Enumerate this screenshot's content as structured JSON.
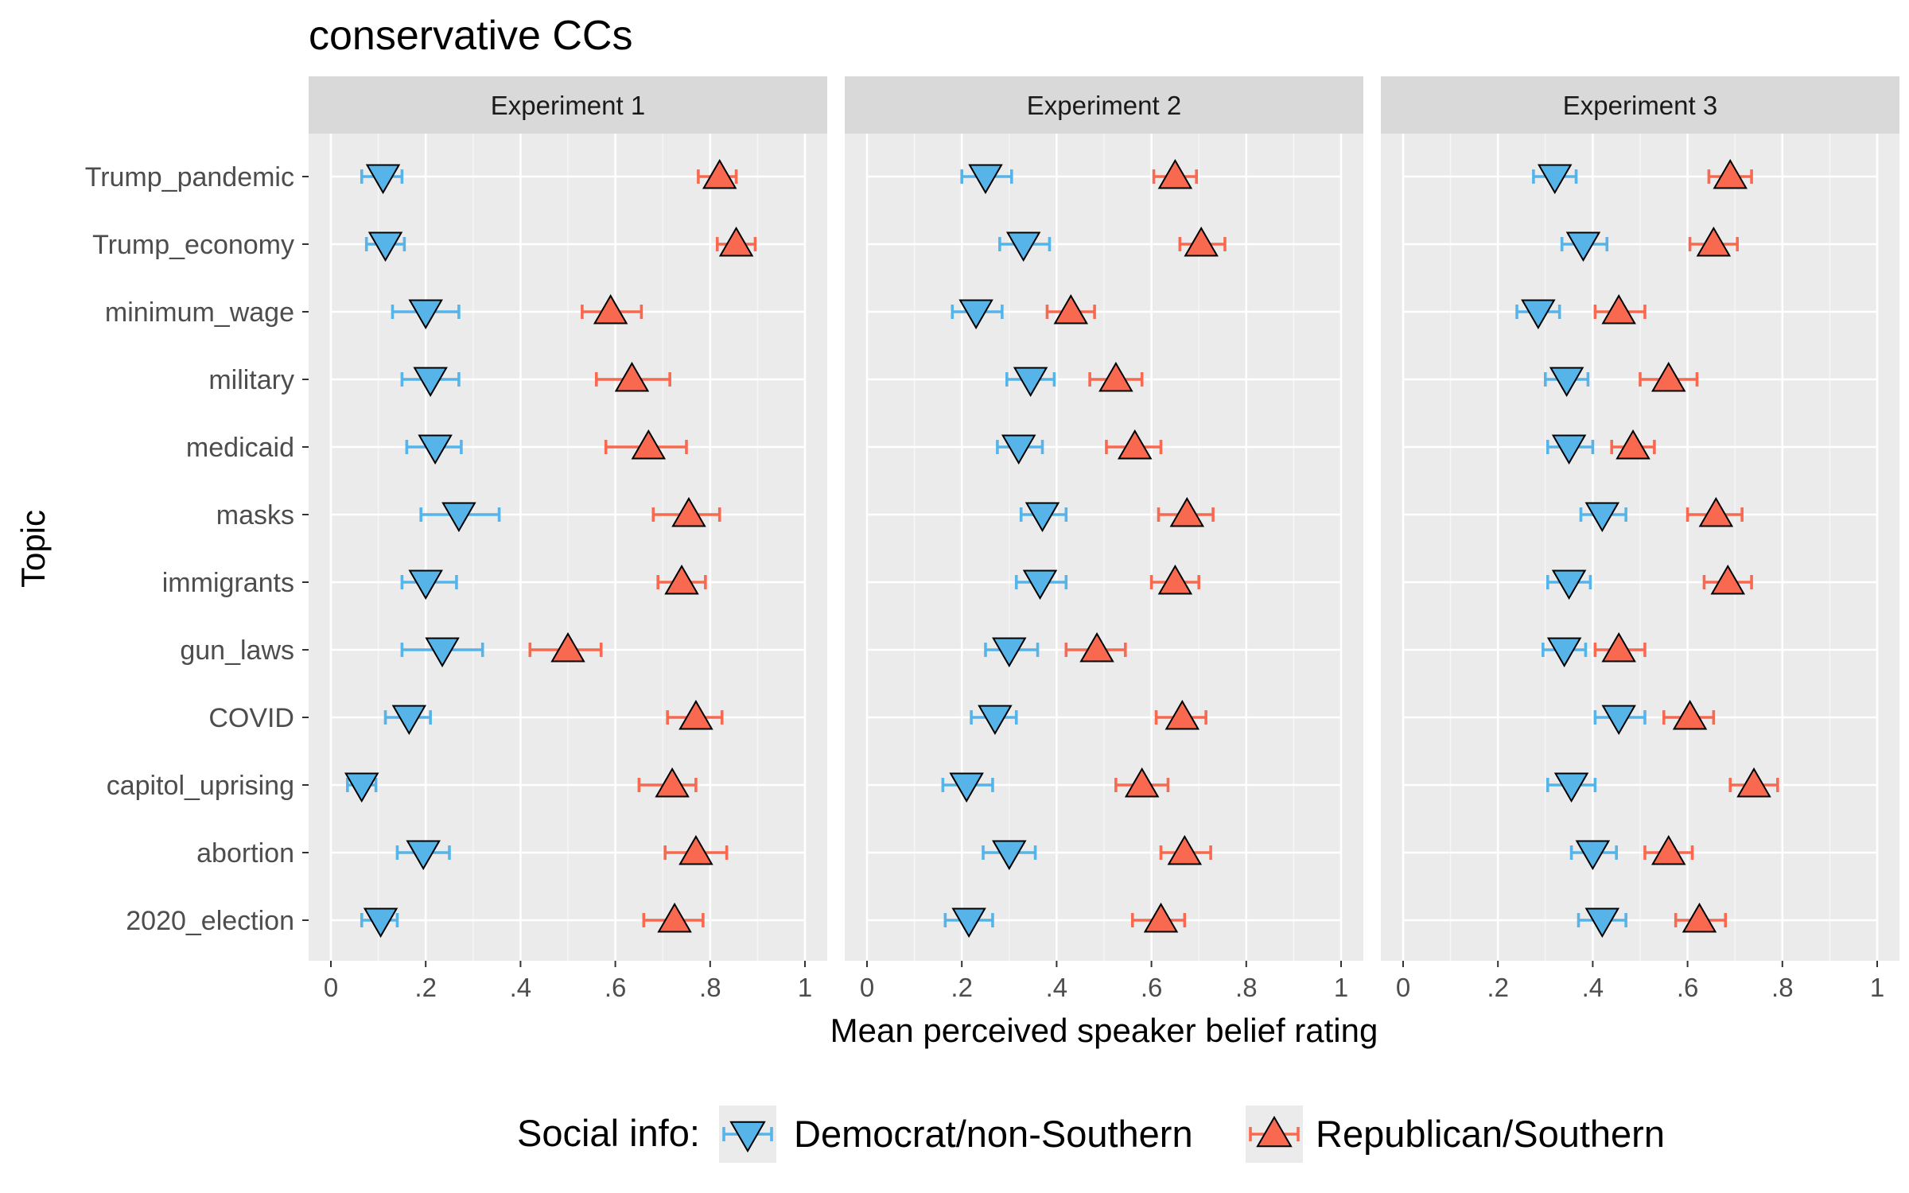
{
  "chart_data": {
    "type": "scatter",
    "title": "conservative CCs",
    "xlabel": "Mean perceived speaker belief rating",
    "ylabel": "Topic",
    "xlim": [
      0,
      1
    ],
    "x_ticks": [
      0,
      0.2,
      0.4,
      0.6,
      0.8,
      1
    ],
    "x_tick_labels": [
      "0",
      ".2",
      ".4",
      ".6",
      ".8",
      "1"
    ],
    "categories": [
      "Trump_pandemic",
      "Trump_economy",
      "minimum_wage",
      "military",
      "medicaid",
      "masks",
      "immigrants",
      "gun_laws",
      "COVID",
      "capitol_uprising",
      "abortion",
      "2020_election"
    ],
    "legend": {
      "title": "Social info:",
      "position": "bottom",
      "entries": [
        {
          "name": "Democrat/non-Southern",
          "color": "#56B4E9",
          "marker": "triangle-down"
        },
        {
          "name": "Republican/Southern",
          "color": "#F8694F",
          "marker": "triangle-up"
        }
      ]
    },
    "grid": true,
    "panels": [
      {
        "title": "Experiment 1",
        "series": [
          {
            "name": "Democrat/non-Southern",
            "mean": [
              0.11,
              0.115,
              0.2,
              0.21,
              0.22,
              0.27,
              0.2,
              0.235,
              0.165,
              0.065,
              0.195,
              0.105
            ],
            "ci": [
              [
                0.065,
                0.15
              ],
              [
                0.075,
                0.155
              ],
              [
                0.13,
                0.27
              ],
              [
                0.15,
                0.27
              ],
              [
                0.16,
                0.275
              ],
              [
                0.19,
                0.355
              ],
              [
                0.15,
                0.265
              ],
              [
                0.15,
                0.32
              ],
              [
                0.115,
                0.21
              ],
              [
                0.035,
                0.095
              ],
              [
                0.14,
                0.25
              ],
              [
                0.065,
                0.14
              ]
            ]
          },
          {
            "name": "Republican/Southern",
            "mean": [
              0.82,
              0.855,
              0.59,
              0.635,
              0.67,
              0.755,
              0.74,
              0.5,
              0.77,
              0.72,
              0.77,
              0.725
            ],
            "ci": [
              [
                0.775,
                0.855
              ],
              [
                0.815,
                0.895
              ],
              [
                0.53,
                0.655
              ],
              [
                0.56,
                0.715
              ],
              [
                0.58,
                0.75
              ],
              [
                0.68,
                0.82
              ],
              [
                0.69,
                0.79
              ],
              [
                0.42,
                0.57
              ],
              [
                0.71,
                0.825
              ],
              [
                0.65,
                0.77
              ],
              [
                0.705,
                0.835
              ],
              [
                0.66,
                0.785
              ]
            ]
          }
        ]
      },
      {
        "title": "Experiment 2",
        "series": [
          {
            "name": "Democrat/non-Southern",
            "mean": [
              0.25,
              0.33,
              0.23,
              0.345,
              0.32,
              0.37,
              0.365,
              0.3,
              0.27,
              0.21,
              0.3,
              0.215
            ],
            "ci": [
              [
                0.2,
                0.305
              ],
              [
                0.28,
                0.385
              ],
              [
                0.18,
                0.285
              ],
              [
                0.295,
                0.395
              ],
              [
                0.275,
                0.37
              ],
              [
                0.325,
                0.42
              ],
              [
                0.315,
                0.42
              ],
              [
                0.25,
                0.36
              ],
              [
                0.22,
                0.315
              ],
              [
                0.16,
                0.265
              ],
              [
                0.245,
                0.355
              ],
              [
                0.165,
                0.265
              ]
            ]
          },
          {
            "name": "Republican/Southern",
            "mean": [
              0.65,
              0.705,
              0.43,
              0.525,
              0.565,
              0.675,
              0.65,
              0.485,
              0.665,
              0.58,
              0.67,
              0.62
            ],
            "ci": [
              [
                0.605,
                0.695
              ],
              [
                0.66,
                0.755
              ],
              [
                0.38,
                0.48
              ],
              [
                0.47,
                0.58
              ],
              [
                0.505,
                0.62
              ],
              [
                0.615,
                0.73
              ],
              [
                0.6,
                0.7
              ],
              [
                0.42,
                0.545
              ],
              [
                0.61,
                0.715
              ],
              [
                0.525,
                0.635
              ],
              [
                0.62,
                0.725
              ],
              [
                0.56,
                0.67
              ]
            ]
          }
        ]
      },
      {
        "title": "Experiment 3",
        "series": [
          {
            "name": "Democrat/non-Southern",
            "mean": [
              0.32,
              0.38,
              0.285,
              0.345,
              0.35,
              0.42,
              0.35,
              0.34,
              0.455,
              0.355,
              0.4,
              0.42
            ],
            "ci": [
              [
                0.275,
                0.365
              ],
              [
                0.335,
                0.43
              ],
              [
                0.24,
                0.33
              ],
              [
                0.3,
                0.39
              ],
              [
                0.305,
                0.4
              ],
              [
                0.375,
                0.47
              ],
              [
                0.305,
                0.395
              ],
              [
                0.295,
                0.385
              ],
              [
                0.405,
                0.51
              ],
              [
                0.305,
                0.405
              ],
              [
                0.355,
                0.45
              ],
              [
                0.37,
                0.47
              ]
            ]
          },
          {
            "name": "Republican/Southern",
            "mean": [
              0.69,
              0.655,
              0.455,
              0.56,
              0.485,
              0.66,
              0.685,
              0.455,
              0.605,
              0.74,
              0.56,
              0.625
            ],
            "ci": [
              [
                0.645,
                0.735
              ],
              [
                0.605,
                0.705
              ],
              [
                0.405,
                0.51
              ],
              [
                0.5,
                0.62
              ],
              [
                0.44,
                0.53
              ],
              [
                0.6,
                0.715
              ],
              [
                0.635,
                0.735
              ],
              [
                0.405,
                0.51
              ],
              [
                0.55,
                0.655
              ],
              [
                0.69,
                0.79
              ],
              [
                0.51,
                0.61
              ],
              [
                0.575,
                0.68
              ]
            ]
          }
        ]
      }
    ]
  }
}
